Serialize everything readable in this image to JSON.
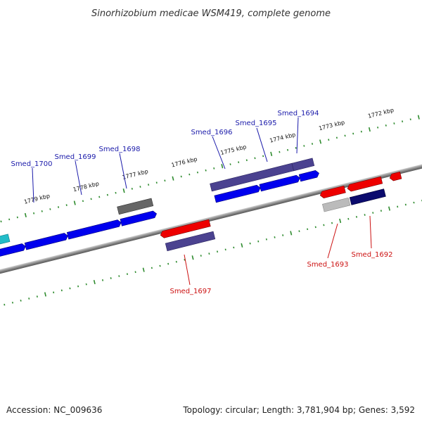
{
  "title": "Sinorhizobium medicae WSM419, complete genome",
  "footer": {
    "accession": "Accession: NC_009636",
    "summary": "Topology: circular; Length: 3,781,904 bp; Genes: 3,592"
  },
  "colors": {
    "forward_gene": "#0000ee",
    "reverse_gene": "#ee0000",
    "forward_label": "#1a1aaa",
    "reverse_label": "#cc1111",
    "tick": "#2e8b2e",
    "backbone": "#888888",
    "dark_gene": "#4b4290",
    "grey_gene": "#666666",
    "navy_gene": "#0b0b6e",
    "cyan_gene": "#22bcc8",
    "light_grey_gene": "#bbbbbb"
  },
  "kbp_labels": [
    "1772 kbp",
    "1773 kbp",
    "1774 kbp",
    "1775 kbp",
    "1776 kbp",
    "1777 kbp",
    "1778 kbp",
    "1779 kbp"
  ],
  "gene_labels_forward": [
    "Smed_1694",
    "Smed_1695",
    "Smed_1696",
    "Smed_1698",
    "Smed_1699",
    "Smed_1700"
  ],
  "gene_labels_reverse": [
    "Smed_1692",
    "Smed_1693",
    "Smed_1697"
  ]
}
